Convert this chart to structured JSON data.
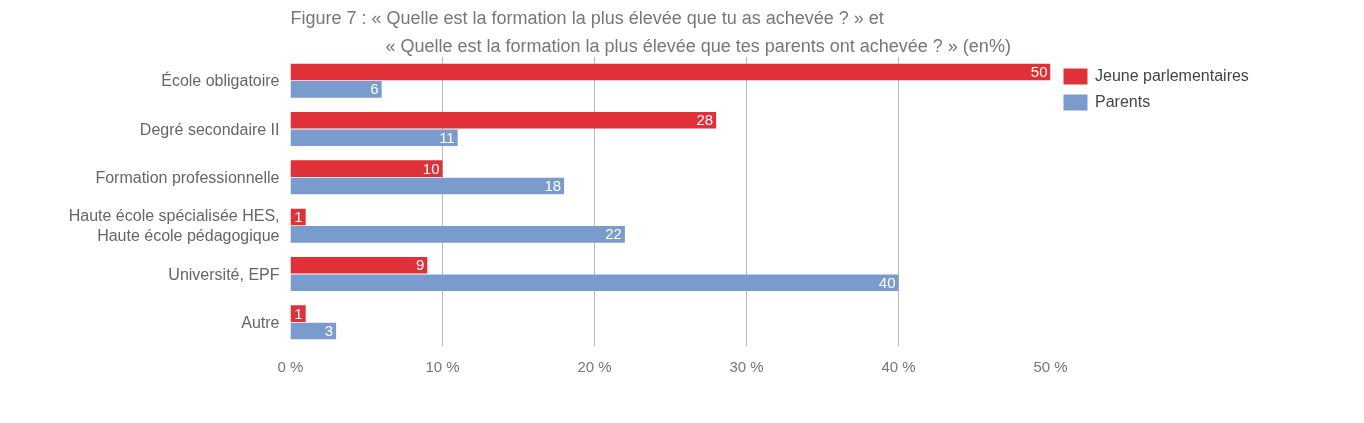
{
  "chart_data": {
    "type": "bar",
    "orientation": "horizontal",
    "title": "Figure 7 : « Quelle est la formation la plus élevée que tu as achevée ? » et",
    "subtitle": "« Quelle est la formation la plus élevée que tes parents ont achevée ? » (en%)",
    "categories": [
      "École obligatoire",
      "Degré secondaire II",
      "Formation professionnelle",
      "Haute école spécialisée HES,\nHaute école pédagogique",
      "Université, EPF",
      "Autre"
    ],
    "series": [
      {
        "name": "Jeune parlementaires",
        "color": "#e03038",
        "values": [
          50,
          28,
          10,
          1,
          9,
          1
        ]
      },
      {
        "name": "Parents",
        "color": "#7a9ccc",
        "values": [
          6,
          11,
          18,
          22,
          40,
          3
        ]
      }
    ],
    "xlim": [
      0,
      50
    ],
    "xticks": [
      {
        "value": 0,
        "label": "0 %"
      },
      {
        "value": 10,
        "label": "10 %"
      },
      {
        "value": 20,
        "label": "20 %"
      },
      {
        "value": 30,
        "label": "30 %"
      },
      {
        "value": 40,
        "label": "40 %"
      },
      {
        "value": 50,
        "label": "50 %"
      }
    ],
    "grid": "x",
    "legend": "top right",
    "data_labels": true
  }
}
